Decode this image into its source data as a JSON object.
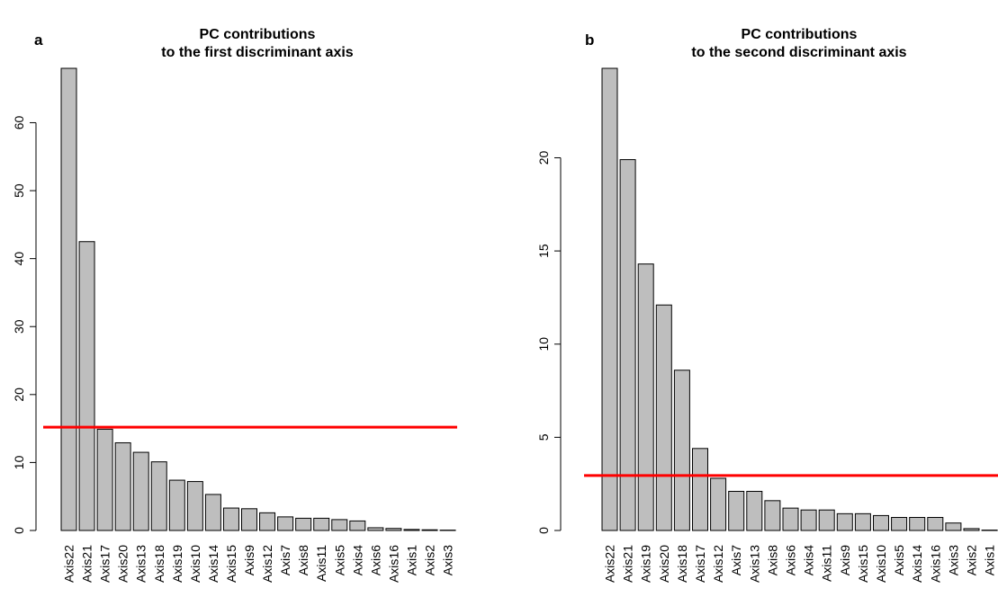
{
  "chart_data": [
    {
      "type": "bar",
      "panel_label": "a",
      "title_lines": [
        "PC contributions",
        "to the first discriminant axis"
      ],
      "categories": [
        "Axis22",
        "Axis21",
        "Axis17",
        "Axis20",
        "Axis13",
        "Axis18",
        "Axis19",
        "Axis10",
        "Axis14",
        "Axis15",
        "Axis9",
        "Axis12",
        "Axis7",
        "Axis8",
        "Axis11",
        "Axis5",
        "Axis4",
        "Axis6",
        "Axis16",
        "Axis1",
        "Axis2",
        "Axis3"
      ],
      "values": [
        68,
        42.5,
        14.9,
        12.9,
        11.5,
        10.1,
        7.4,
        7.2,
        5.3,
        3.3,
        3.2,
        2.6,
        2.0,
        1.8,
        1.8,
        1.6,
        1.4,
        0.4,
        0.3,
        0.15,
        0.1,
        0.05
      ],
      "yticks": [
        0,
        10,
        20,
        30,
        40,
        50,
        60
      ],
      "ylim": [
        0,
        68
      ],
      "threshold": 15.2,
      "bar_color": "#bebebe",
      "threshold_color": "#ff0000",
      "grid": false
    },
    {
      "type": "bar",
      "panel_label": "b",
      "title_lines": [
        "PC contributions",
        "to the second discriminant axis"
      ],
      "categories": [
        "Axis22",
        "Axis21",
        "Axis19",
        "Axis20",
        "Axis18",
        "Axis17",
        "Axis12",
        "Axis7",
        "Axis13",
        "Axis8",
        "Axis6",
        "Axis4",
        "Axis11",
        "Axis9",
        "Axis15",
        "Axis10",
        "Axis5",
        "Axis14",
        "Axis16",
        "Axis3",
        "Axis2",
        "Axis1"
      ],
      "values": [
        24.8,
        19.9,
        14.3,
        12.1,
        8.6,
        4.4,
        2.8,
        2.1,
        2.1,
        1.6,
        1.2,
        1.1,
        1.1,
        0.9,
        0.9,
        0.8,
        0.7,
        0.7,
        0.7,
        0.4,
        0.1,
        0.02
      ],
      "yticks": [
        0,
        5,
        10,
        15,
        20
      ],
      "ylim": [
        0,
        24.8
      ],
      "threshold": 2.95,
      "bar_color": "#bebebe",
      "threshold_color": "#ff0000",
      "grid": false
    }
  ]
}
